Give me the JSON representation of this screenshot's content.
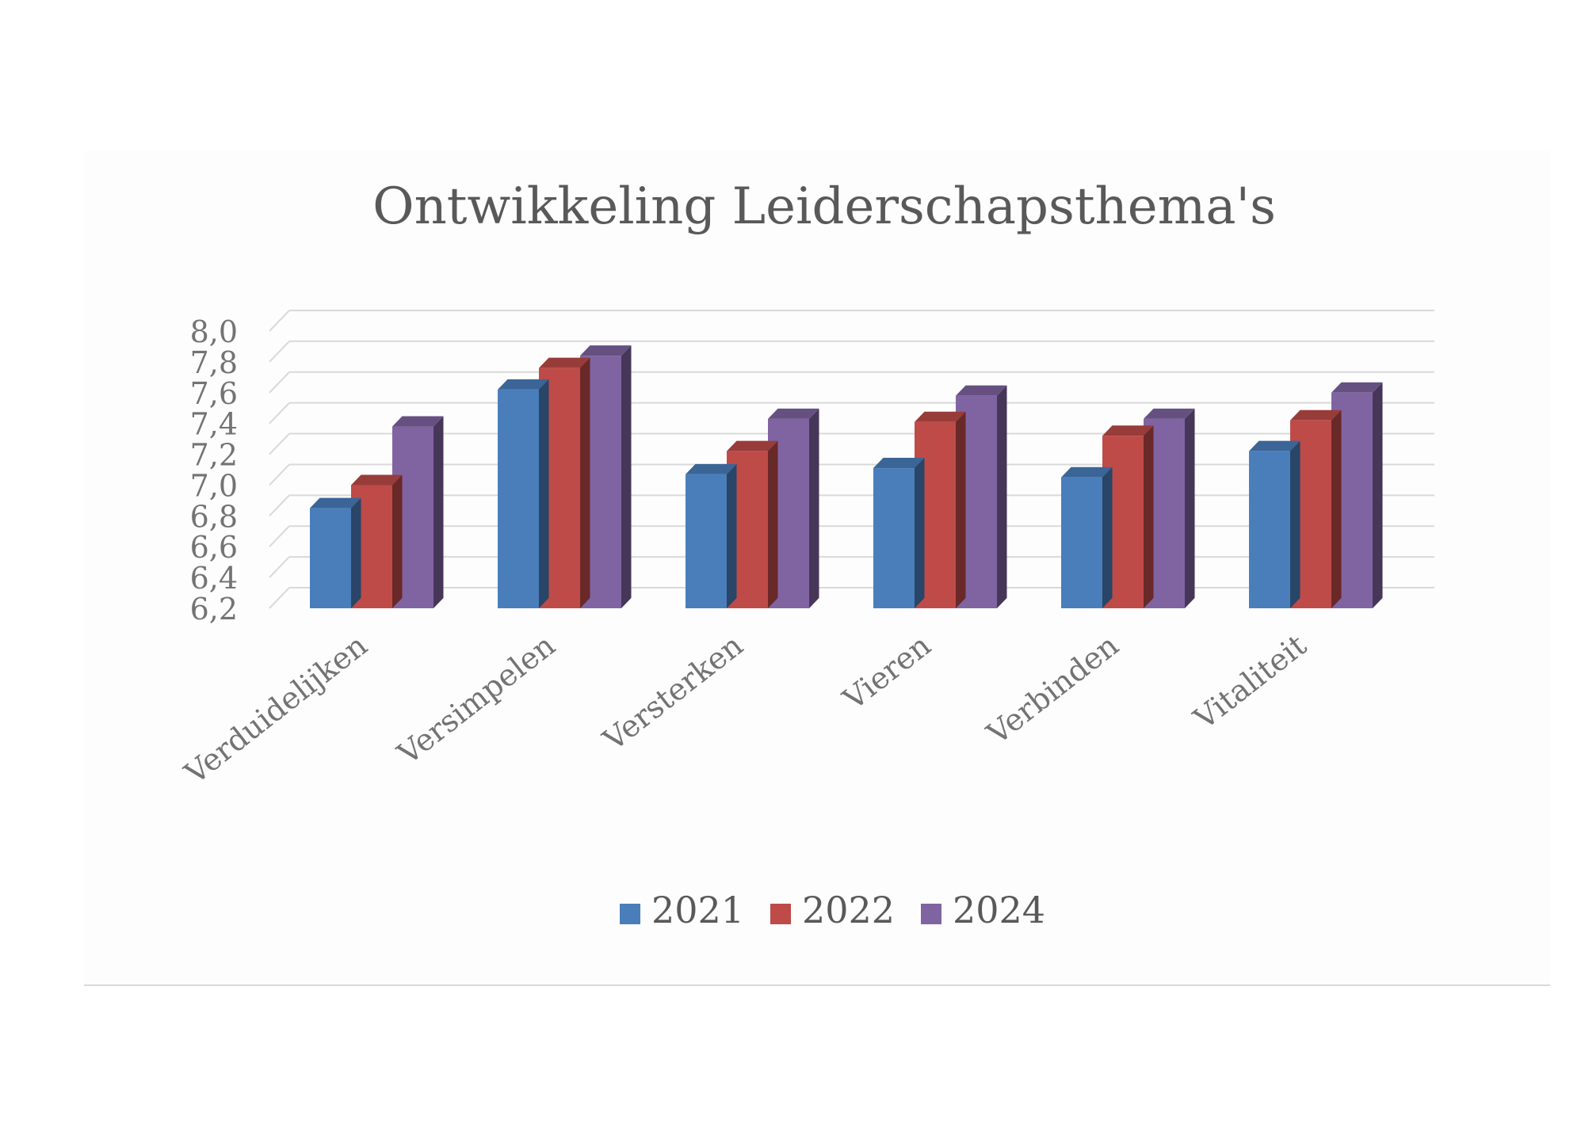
{
  "chart_data": {
    "type": "bar",
    "title": "Ontwikkeling Leiderschapsthema's",
    "categories": [
      "Verduidelijken",
      "Versimpelen",
      "Versterken",
      "Vieren",
      "Verbinden",
      "Vitaliteit"
    ],
    "series": [
      {
        "name": "2021",
        "color": "#4a7ebb",
        "values": [
          6.85,
          7.62,
          7.07,
          7.11,
          7.05,
          7.22
        ]
      },
      {
        "name": "2022",
        "color": "#be4b48",
        "values": [
          7.0,
          7.76,
          7.22,
          7.41,
          7.32,
          7.42
        ]
      },
      {
        "name": "2024",
        "color": "#8064a2",
        "values": [
          7.38,
          7.84,
          7.43,
          7.58,
          7.43,
          7.6
        ]
      }
    ],
    "yticks": [
      "6,2",
      "6,4",
      "6,6",
      "6,8",
      "7,0",
      "7,2",
      "7,4",
      "7,6",
      "7,8",
      "8,0"
    ],
    "ylim": [
      6.2,
      8.0
    ],
    "grid": true,
    "legend_position": "bottom",
    "style": "3d-clustered-column"
  }
}
